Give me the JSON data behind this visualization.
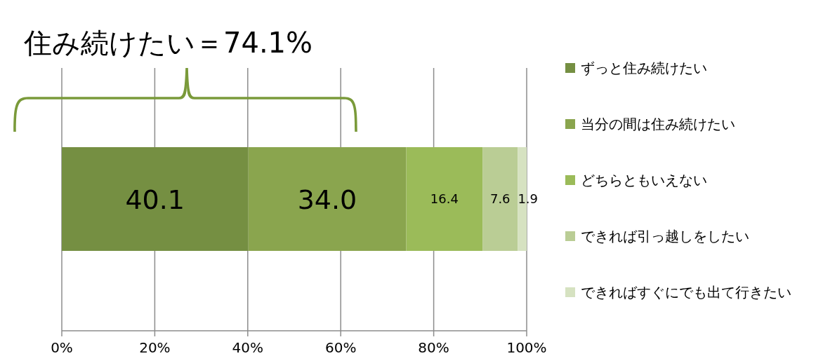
{
  "chart_data": {
    "type": "bar",
    "orientation": "horizontal",
    "stacked": true,
    "title": "住み続けたい＝74.1%",
    "categories": [
      null
    ],
    "series": [
      {
        "name": "ずっと住み続けたい",
        "color": "#758f42",
        "values": [
          40.1
        ],
        "value_labels": [
          "40.1"
        ]
      },
      {
        "name": "当分の間は住み続けたい",
        "color": "#8aa54e",
        "values": [
          34.0
        ],
        "value_labels": [
          "34.0"
        ]
      },
      {
        "name": "どちらともいえない",
        "color": "#9bbb59",
        "values": [
          16.4
        ],
        "value_labels": [
          "16.4"
        ]
      },
      {
        "name": "できれば引っ越しをしたい",
        "color": "#bacd95",
        "values": [
          7.6
        ],
        "value_labels": [
          "7.6"
        ]
      },
      {
        "name": "できればすぐにでも出て行きたい",
        "color": "#d6e2c1",
        "values": [
          1.9
        ],
        "value_labels": [
          "1.9"
        ]
      }
    ],
    "xlim": [
      0,
      100
    ],
    "xticks": [
      {
        "value": 0,
        "label": "0%"
      },
      {
        "value": 20,
        "label": "20%"
      },
      {
        "value": 40,
        "label": "40%"
      },
      {
        "value": 60,
        "label": "60%"
      },
      {
        "value": 80,
        "label": "80%"
      },
      {
        "value": 100,
        "label": "100%"
      }
    ],
    "grid": "x",
    "legend": "right"
  }
}
